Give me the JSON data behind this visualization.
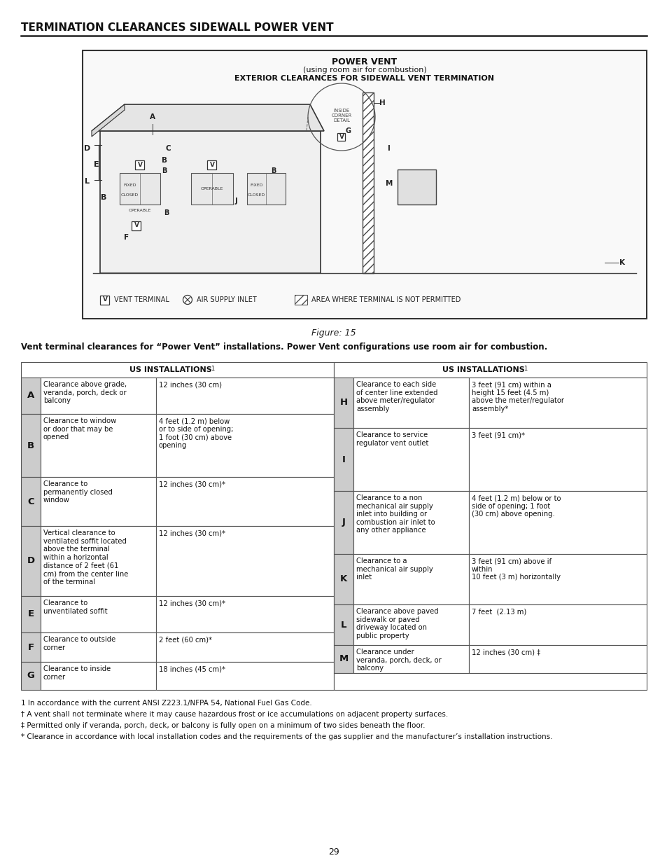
{
  "title": "TERMINATION CLEARANCES SIDEWALL POWER VENT",
  "figure_title": "Figure: 15",
  "figure_caption": "Vent terminal clearances for “Power Vent” installations. Power Vent configurations use room air for combustion.",
  "diagram_title_line1": "POWER VENT",
  "diagram_title_line2": "(using room air for combustion)",
  "diagram_title_line3": "EXTERIOR CLEARANCES FOR SIDEWALL VENT TERMINATION",
  "table_header": "US INSTALLATIONS",
  "footnote1": "1 In accordance with the current ANSI Z223.1/NFPA 54, National Fuel Gas Code.",
  "footnote2": "† A vent shall not terminate where it may cause hazardous frost or ice accumulations on adjacent property surfaces.",
  "footnote3": "‡ Permitted only if veranda, porch, deck, or balcony is fully open on a minimum of two sides beneath the floor.",
  "footnote4": "* Clearance in accordance with local installation codes and the requirements of the gas supplier and the manufacturer’s installation instructions.",
  "page_number": "29",
  "rows_left": [
    {
      "letter": "A",
      "description": "Clearance above grade,\nveranda, porch, deck or\nbalcony",
      "value": "12 inches (30 cm)"
    },
    {
      "letter": "B",
      "description": "Clearance to window\nor door that may be\nopened",
      "value": "4 feet (1.2 m) below\nor to side of opening;\n1 foot (30 cm) above\nopening"
    },
    {
      "letter": "C",
      "description": "Clearance to\npermanently closed\nwindow",
      "value": "12 inches (30 cm)*"
    },
    {
      "letter": "D",
      "description": "Vertical clearance to\nventilated soffit located\nabove the terminal\nwithin a horizontal\ndistance of 2 feet (61\ncm) from the center line\nof the terminal",
      "value": "12 inches (30 cm)*"
    },
    {
      "letter": "E",
      "description": "Clearance to\nunventilated soffit",
      "value": "12 inches (30 cm)*"
    },
    {
      "letter": "F",
      "description": "Clearance to outside\ncorner",
      "value": "2 feet (60 cm)*"
    },
    {
      "letter": "G",
      "description": "Clearance to inside\ncorner",
      "value": "18 inches (45 cm)*"
    }
  ],
  "rows_right": [
    {
      "letter": "H",
      "description": "Clearance to each side\nof center line extended\nabove meter/regulator\nassembly",
      "value": "3 feet (91 cm) within a\nheight 15 feet (4.5 m)\nabove the meter/regulator\nassembly*"
    },
    {
      "letter": "I",
      "description": "Clearance to service\nregulator vent outlet",
      "value": "3 feet (91 cm)*"
    },
    {
      "letter": "J",
      "description": "Clearance to a non\nmechanical air supply\ninlet into building or\ncombustion air inlet to\nany other appliance",
      "value": "4 feet (1.2 m) below or to\nside of opening; 1 foot\n(30 cm) above opening."
    },
    {
      "letter": "K",
      "description": "Clearance to a\nmechanical air supply\ninlet",
      "value": "3 feet (91 cm) above if\nwithin\n10 feet (3 m) horizontally"
    },
    {
      "letter": "L",
      "description": "Clearance above paved\nsidewalk or paved\ndriveway located on\npublic property",
      "value": "7 feet  (2.13 m)"
    },
    {
      "letter": "M",
      "description": "Clearance under\nveranda, porch, deck, or\nbalcony",
      "value": "12 inches (30 cm) ‡"
    }
  ],
  "bg_color": "#ffffff",
  "border_color": "#555555",
  "letter_shade": "#cccccc"
}
